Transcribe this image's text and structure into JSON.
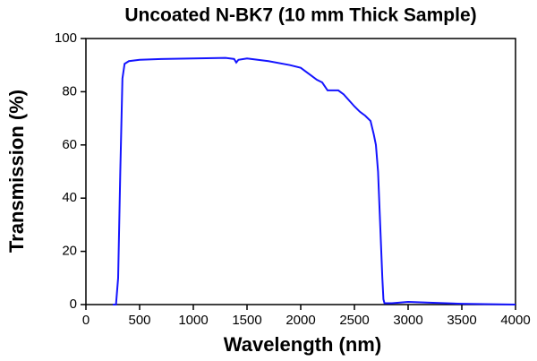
{
  "chart_data": {
    "type": "line",
    "title": "Uncoated N-BK7 (10 mm Thick Sample)",
    "x_label": "Wavelength (nm)",
    "y_label": "Transmission (%)",
    "x": [
      250,
      280,
      300,
      320,
      340,
      360,
      400,
      500,
      700,
      1000,
      1300,
      1380,
      1400,
      1420,
      1500,
      1700,
      1900,
      2000,
      2100,
      2150,
      2200,
      2250,
      2350,
      2400,
      2500,
      2550,
      2600,
      2650,
      2680,
      2700,
      2720,
      2740,
      2760,
      2770,
      2780,
      2850,
      3000,
      3200,
      3500,
      4000
    ],
    "series": [
      {
        "name": "N-BK7",
        "color": "#1414ff",
        "values": [
          0,
          0,
          10,
          50,
          85,
          90.5,
          91.5,
          92,
          92.3,
          92.5,
          92.7,
          92.3,
          91,
          92,
          92.5,
          91.5,
          90,
          89,
          86,
          84.5,
          83.5,
          80.5,
          80.5,
          79,
          74.5,
          72.5,
          71,
          69,
          64,
          60,
          50,
          30,
          10,
          2,
          0.5,
          0.5,
          1,
          0.7,
          0.3,
          0
        ]
      }
    ],
    "xlim": [
      0,
      4000
    ],
    "xticks": [
      0,
      500,
      1000,
      1500,
      2000,
      2500,
      3000,
      3500,
      4000
    ],
    "ylim": [
      0,
      100
    ],
    "yticks": [
      0,
      20,
      40,
      60,
      80,
      100
    ]
  }
}
